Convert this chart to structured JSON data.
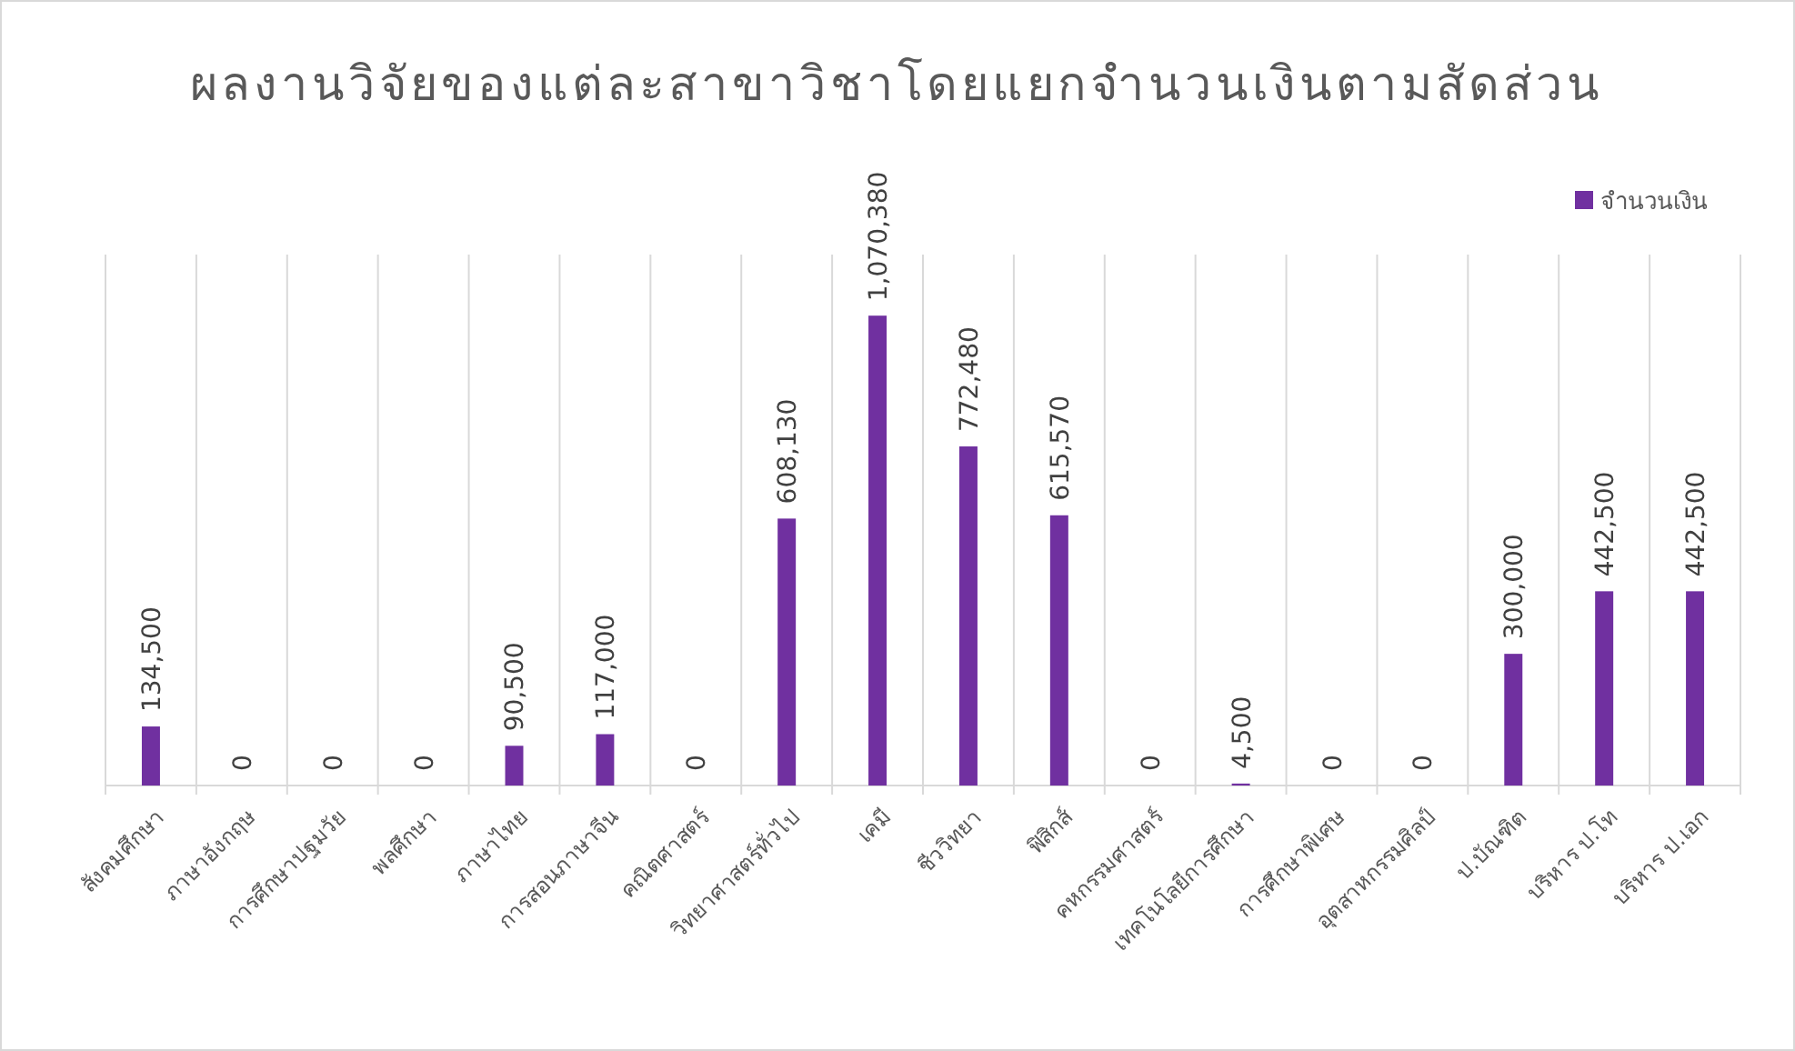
{
  "chart_data": {
    "type": "bar",
    "title": "ผลงานวิจัยของแต่ละสาขาวิชาโดยแยกจำนวนเงินตามสัดส่วน",
    "categories": [
      "สังคมศึกษา",
      "ภาษาอังกฤษ",
      "การศึกษาปฐมวัย",
      "พลศึกษา",
      "ภาษาไทย",
      "การสอนภาษาจีน",
      "คณิตศาสตร์",
      "วิทยาศาสตร์ทั่วไป",
      "เคมี",
      "ชีววิทยา",
      "ฟิสิกส์",
      "คหกรรมศาสตร์",
      "เทคโนโลยีการศึกษา",
      "การศึกษาพิเศษ",
      "อุตสาหกรรมศิลป์",
      "ป.บัณฑิต",
      "บริหาร ป.โท",
      "บริหาร ป.เอก"
    ],
    "series": [
      {
        "name": "จำนวนเงิน",
        "color": "#7030a0",
        "values": [
          134500,
          0,
          0,
          0,
          90500,
          117000,
          0,
          608130,
          1070380,
          772480,
          615570,
          0,
          4500,
          0,
          0,
          300000,
          442500,
          442500
        ],
        "value_labels": [
          "134,500",
          "0",
          "0",
          "0",
          "90,500",
          "117,000",
          "0",
          "608,130",
          "1,070,380",
          "772,480",
          "615,570",
          "0",
          "4,500",
          "0",
          "0",
          "300,000",
          "442,500",
          "442,500"
        ]
      }
    ],
    "grid": "x",
    "legend": "top right"
  }
}
